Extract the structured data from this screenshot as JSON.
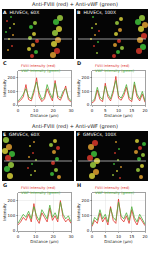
{
  "figure": {
    "sections": [
      {
        "header": "Anti-FVIII (red) + Anti-vWF (green)",
        "images": [
          {
            "panel": "A",
            "label": "HUVECs, 60X"
          },
          {
            "panel": "B",
            "label": "HUVECs, 100X"
          }
        ]
      },
      {
        "header": "Anti-FVIII (red) + Anti-vWF (green)",
        "images": [
          {
            "panel": "E",
            "label": "GMVECs, 60X"
          },
          {
            "panel": "F",
            "label": "GMVECs, 100X"
          }
        ]
      }
    ]
  },
  "chart_data": [
    {
      "panel": "C",
      "type": "line",
      "x_label": "Distance (µm)",
      "y_label": "Intensity",
      "x": [
        0,
        1.5,
        3,
        4.5,
        6,
        7.5,
        9,
        10.5,
        12,
        13.5,
        15,
        16.5,
        18,
        19.5,
        21,
        22.5,
        24,
        25.5,
        27,
        28.5,
        30
      ],
      "xlim": [
        0,
        30
      ],
      "xticks": [
        0,
        10,
        20,
        30
      ],
      "ylim": [
        0,
        250
      ],
      "yticks": [
        0,
        100,
        200
      ],
      "series": [
        {
          "name": "FVIII Intensity (red)",
          "color": "#e0312a",
          "values": [
            20,
            35,
            60,
            150,
            40,
            30,
            90,
            200,
            60,
            25,
            45,
            120,
            70,
            30,
            180,
            50,
            35,
            80,
            140,
            40,
            20
          ]
        },
        {
          "name": "VWF Intensity (green)",
          "color": "#4caf3a",
          "values": [
            30,
            50,
            80,
            120,
            60,
            45,
            110,
            170,
            90,
            40,
            60,
            150,
            90,
            50,
            160,
            70,
            50,
            100,
            120,
            55,
            30
          ]
        }
      ]
    },
    {
      "panel": "D",
      "type": "line",
      "x_label": "Distance (µm)",
      "y_label": "Intensity",
      "x": [
        0,
        1,
        2,
        3,
        4,
        5,
        6,
        7,
        8,
        9,
        10,
        11,
        12,
        13,
        14,
        15,
        16,
        17,
        18,
        19,
        20
      ],
      "xlim": [
        0,
        20
      ],
      "xticks": [
        0,
        5,
        10,
        15,
        20
      ],
      "ylim": [
        0,
        250
      ],
      "yticks": [
        0,
        100,
        200
      ],
      "series": [
        {
          "name": "FVIII Intensity (red)",
          "color": "#e0312a",
          "values": [
            15,
            30,
            110,
            40,
            25,
            160,
            60,
            30,
            90,
            210,
            50,
            35,
            70,
            130,
            40,
            25,
            150,
            60,
            30,
            80,
            20
          ]
        },
        {
          "name": "VWF Intensity (green)",
          "color": "#4caf3a",
          "values": [
            25,
            45,
            130,
            60,
            40,
            140,
            80,
            45,
            110,
            180,
            70,
            50,
            90,
            150,
            60,
            40,
            170,
            80,
            45,
            100,
            30
          ]
        }
      ]
    },
    {
      "panel": "G",
      "type": "line",
      "x_label": "Distance (µm)",
      "y_label": "Intensity",
      "x": [
        0,
        1.5,
        3,
        4.5,
        6,
        7.5,
        9,
        10.5,
        12,
        13.5,
        15,
        16.5,
        18,
        19.5,
        21,
        22.5,
        24,
        25.5,
        27,
        28.5,
        30
      ],
      "xlim": [
        0,
        30
      ],
      "xticks": [
        0,
        10,
        20,
        30
      ],
      "ylim": [
        0,
        250
      ],
      "yticks": [
        0,
        100,
        200
      ],
      "series": [
        {
          "name": "FVIII Intensity (red)",
          "color": "#e0312a",
          "values": [
            40,
            60,
            90,
            70,
            110,
            60,
            180,
            80,
            50,
            120,
            90,
            60,
            150,
            70,
            100,
            60,
            200,
            90,
            60,
            80,
            50
          ]
        },
        {
          "name": "VWF Intensity (green)",
          "color": "#4caf3a",
          "values": [
            50,
            80,
            110,
            90,
            130,
            80,
            160,
            100,
            70,
            140,
            110,
            80,
            170,
            90,
            120,
            80,
            190,
            110,
            80,
            100,
            60
          ]
        }
      ]
    },
    {
      "panel": "H",
      "type": "line",
      "x_label": "Distance (µm)",
      "y_label": "Intensity",
      "x": [
        0,
        1,
        2,
        3,
        4,
        5,
        6,
        7,
        8,
        9,
        10,
        11,
        12,
        13,
        14,
        15,
        16,
        17,
        18,
        19,
        20
      ],
      "xlim": [
        0,
        20
      ],
      "xticks": [
        0,
        5,
        10,
        15,
        20
      ],
      "ylim": [
        0,
        250
      ],
      "yticks": [
        0,
        100,
        200
      ],
      "series": [
        {
          "name": "FVIII Intensity (red)",
          "color": "#e0312a",
          "values": [
            30,
            70,
            50,
            120,
            60,
            90,
            40,
            160,
            70,
            50,
            210,
            80,
            60,
            100,
            50,
            140,
            70,
            40,
            90,
            60,
            35
          ]
        },
        {
          "name": "VWF Intensity (green)",
          "color": "#4caf3a",
          "values": [
            40,
            90,
            70,
            140,
            80,
            110,
            60,
            150,
            90,
            70,
            190,
            100,
            80,
            120,
            70,
            160,
            90,
            60,
            110,
            80,
            45
          ]
        }
      ]
    }
  ]
}
